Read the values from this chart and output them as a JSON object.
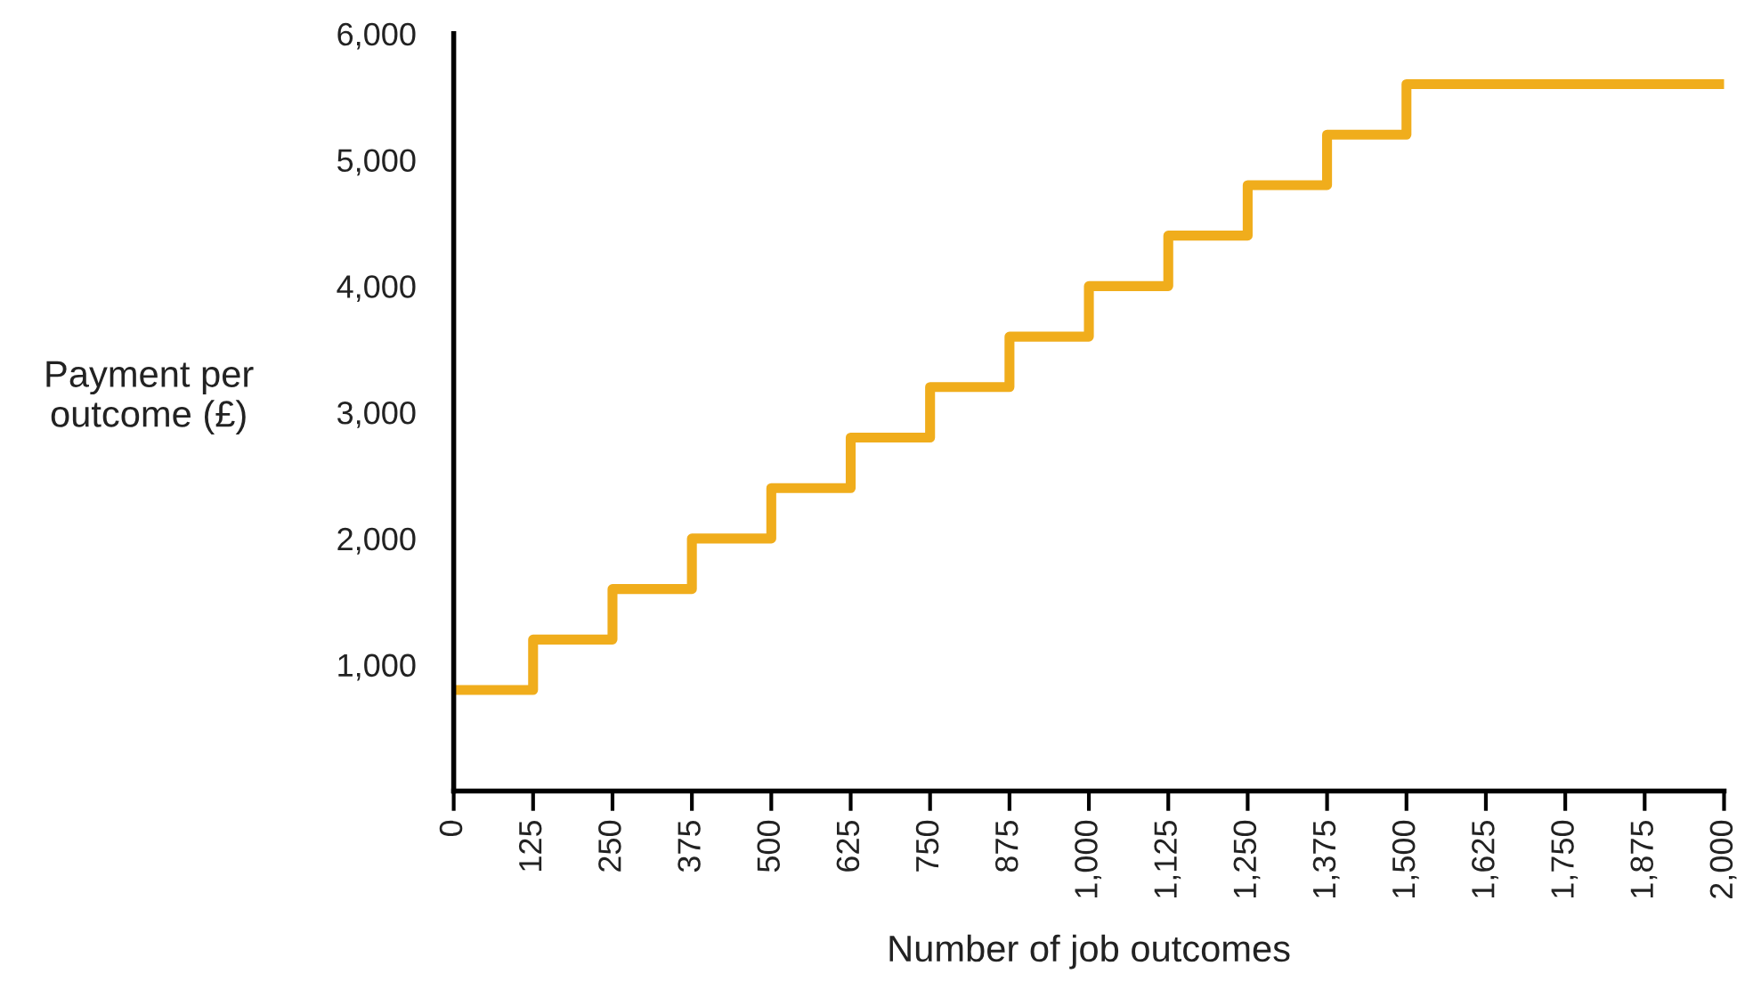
{
  "chart_data": {
    "type": "step",
    "xlabel": "Number of job outcomes",
    "ylabel": "Payment per\noutcome (£)",
    "x": [
      0,
      125,
      250,
      375,
      500,
      625,
      750,
      875,
      1000,
      1125,
      1250,
      1375,
      1500,
      2000
    ],
    "series": [
      {
        "color": "#f0ad1c",
        "values": [
          800,
          1200,
          1600,
          2000,
          2400,
          2800,
          3200,
          3600,
          4000,
          4400,
          4800,
          5200,
          5600,
          5600
        ]
      }
    ],
    "xlim": [
      0,
      2000
    ],
    "ylim": [
      0,
      6000
    ],
    "xticks": [
      0,
      125,
      250,
      375,
      500,
      625,
      750,
      875,
      {
        "value": 1000,
        "label": "1,000"
      },
      {
        "value": 1125,
        "label": "1,125"
      },
      {
        "value": 1250,
        "label": "1,250"
      },
      {
        "value": 1375,
        "label": "1,375"
      },
      {
        "value": 1500,
        "label": "1,500"
      },
      {
        "value": 1625,
        "label": "1,625"
      },
      {
        "value": 1750,
        "label": "1,750"
      },
      {
        "value": 1875,
        "label": "1,875"
      },
      {
        "value": 2000,
        "label": "2,000"
      }
    ],
    "yticks": [
      {
        "value": 1000,
        "label": "1,000"
      },
      {
        "value": 2000,
        "label": "2,000"
      },
      {
        "value": 3000,
        "label": "3,000"
      },
      {
        "value": 4000,
        "label": "4,000"
      },
      {
        "value": 5000,
        "label": "5,000"
      },
      {
        "value": 6000,
        "label": "6,000"
      }
    ],
    "grid": false
  }
}
